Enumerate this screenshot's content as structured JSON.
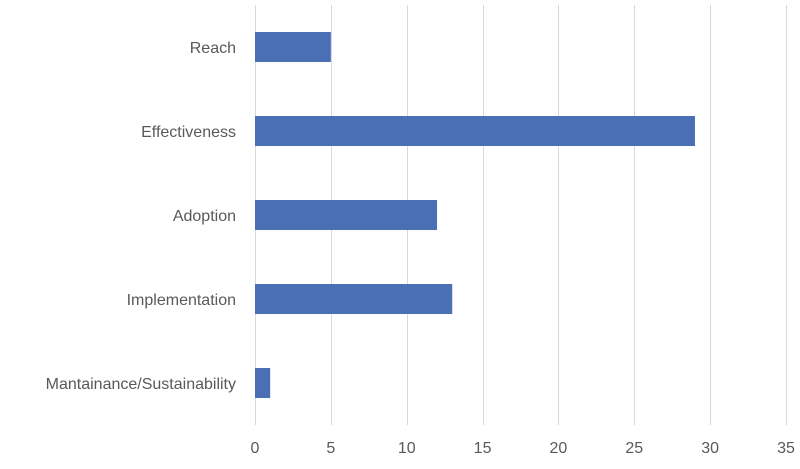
{
  "chart_data": {
    "type": "bar",
    "orientation": "horizontal",
    "title": "",
    "xlabel": "",
    "ylabel": "",
    "categories": [
      "Reach",
      "Effectiveness",
      "Adoption",
      "Implementation",
      "Mantainance/Sustainability"
    ],
    "values": [
      5,
      29,
      12,
      13,
      1
    ],
    "xlim": [
      0,
      35
    ],
    "xticks": [
      0,
      5,
      10,
      15,
      20,
      25,
      30,
      35
    ],
    "xtick_labels": [
      "0",
      "5",
      "10",
      "15",
      "20",
      "25",
      "30",
      "35"
    ],
    "grid": true,
    "legend": "none",
    "bar_color": "#4a6fb5"
  }
}
